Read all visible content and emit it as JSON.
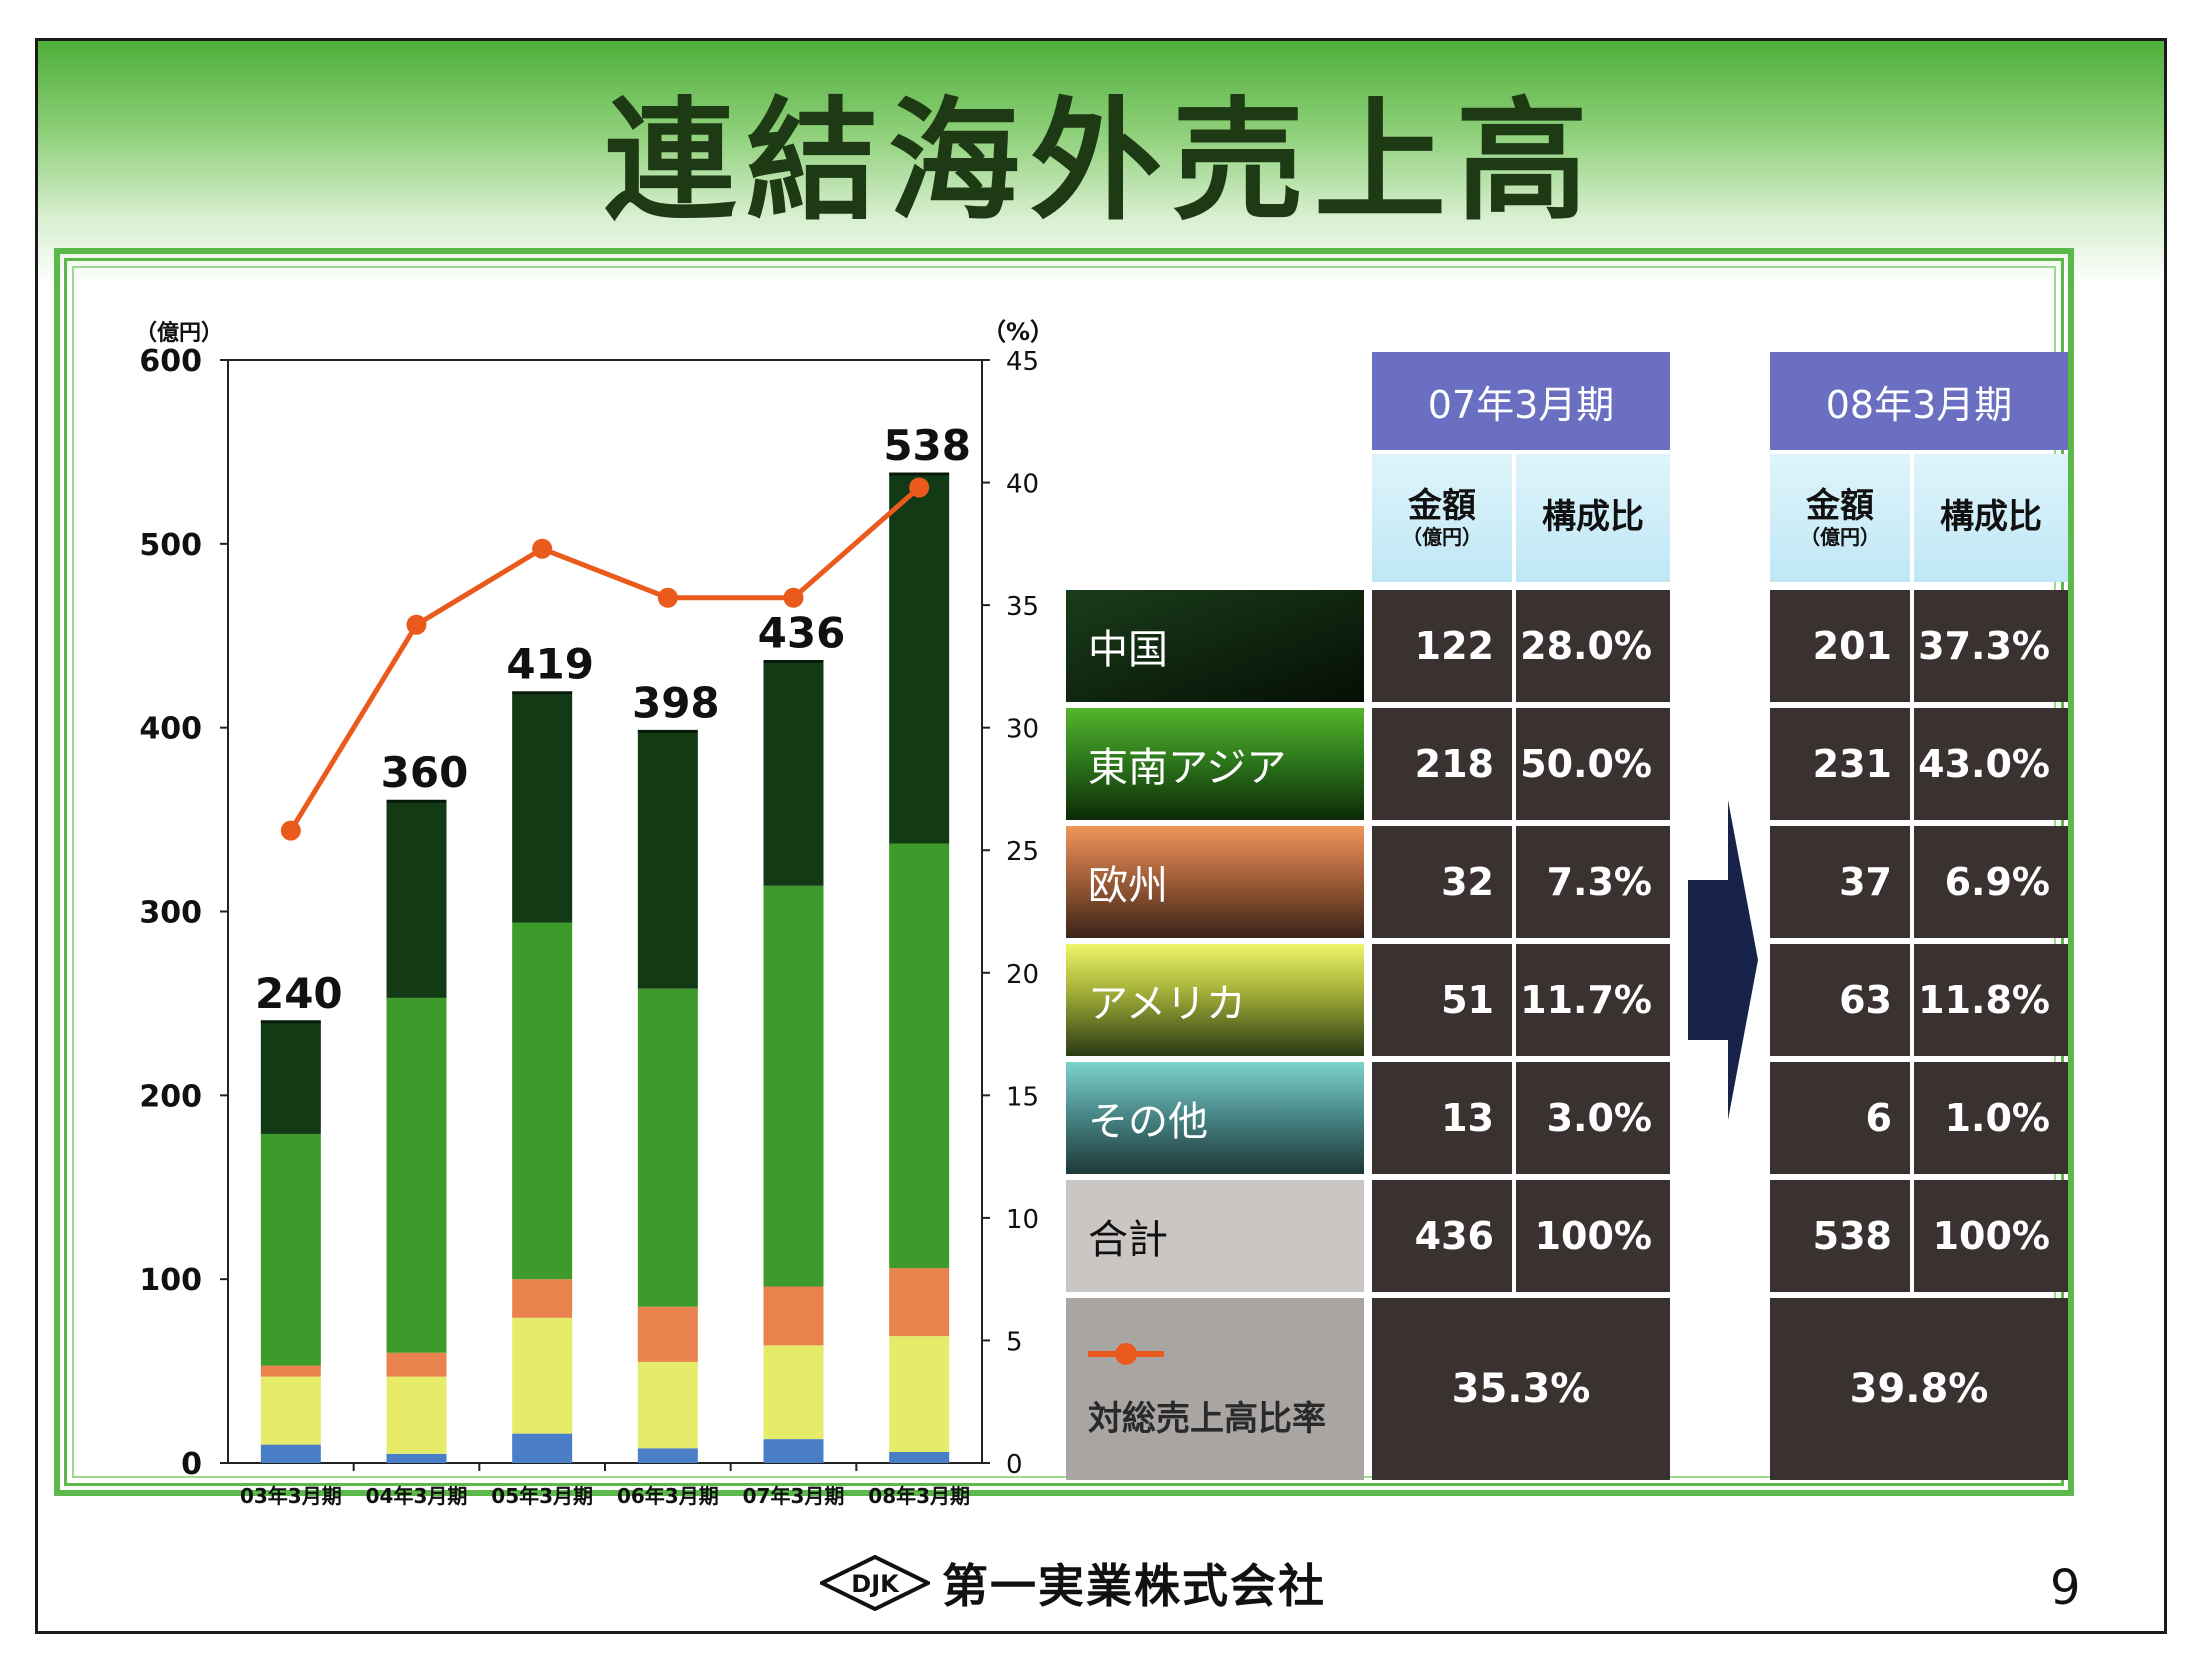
{
  "slide": {
    "title": "連結海外売上高",
    "company_name": "第一実業株式会社",
    "logo_text": "DJK",
    "page_number": "9"
  },
  "colors": {
    "china": "#123a14",
    "southeast_asia": "#3e9a2a",
    "europe": "#e8834e",
    "america": "#e6ec6a",
    "other": "#4a7fc8",
    "ratio_line": "#ea5a1c"
  },
  "chart_data": {
    "type": "bar",
    "stacked": true,
    "categories": [
      "03年3月期",
      "04年3月期",
      "05年3月期",
      "06年3月期",
      "07年3月期",
      "08年3月期"
    ],
    "series": [
      {
        "name": "その他",
        "values": [
          10,
          5,
          16,
          8,
          13,
          6
        ],
        "color_key": "other"
      },
      {
        "name": "アメリカ",
        "values": [
          37,
          42,
          63,
          47,
          51,
          63
        ],
        "color_key": "america"
      },
      {
        "name": "欧州",
        "values": [
          6,
          13,
          21,
          30,
          32,
          37
        ],
        "color_key": "europe"
      },
      {
        "name": "東南アジア",
        "values": [
          126,
          193,
          194,
          173,
          218,
          231
        ],
        "color_key": "southeast_asia"
      },
      {
        "name": "中国",
        "values": [
          61,
          107,
          125,
          140,
          122,
          201
        ],
        "color_key": "china"
      }
    ],
    "totals": [
      240,
      360,
      419,
      398,
      436,
      538
    ],
    "line_series": {
      "name": "対総売上高比率",
      "axis": "right",
      "values": [
        25.8,
        34.2,
        37.3,
        35.3,
        35.3,
        39.8
      ]
    },
    "ylabel_left": "（億円）",
    "ylabel_right": "（%）",
    "ylim_left": [
      0,
      600
    ],
    "yticks_left": [
      0,
      100,
      200,
      300,
      400,
      500,
      600
    ],
    "ylim_right": [
      0,
      45
    ],
    "yticks_right": [
      0,
      5,
      10,
      15,
      20,
      25,
      30,
      35,
      40,
      45
    ]
  },
  "table": {
    "periods": [
      "07年3月期",
      "08年3月期"
    ],
    "col_amount": "金額",
    "col_amount_unit": "（億円）",
    "col_ratio": "構成比",
    "rows": [
      {
        "label": "中国",
        "amount07": "122",
        "ratio07": "28.0%",
        "amount08": "201",
        "ratio08": "37.3%"
      },
      {
        "label": "東南アジア",
        "amount07": "218",
        "ratio07": "50.0%",
        "amount08": "231",
        "ratio08": "43.0%"
      },
      {
        "label": "欧州",
        "amount07": "32",
        "ratio07": "7.3%",
        "amount08": "37",
        "ratio08": "6.9%"
      },
      {
        "label": "アメリカ",
        "amount07": "51",
        "ratio07": "11.7%",
        "amount08": "63",
        "ratio08": "11.8%"
      },
      {
        "label": "その他",
        "amount07": "13",
        "ratio07": "3.0%",
        "amount08": "6",
        "ratio08": "1.0%"
      },
      {
        "label": "合計",
        "amount07": "436",
        "ratio07": "100%",
        "amount08": "538",
        "ratio08": "100%"
      }
    ],
    "ratio_row": {
      "label": "対総売上高比率",
      "value07": "35.3%",
      "value08": "39.8%"
    }
  }
}
